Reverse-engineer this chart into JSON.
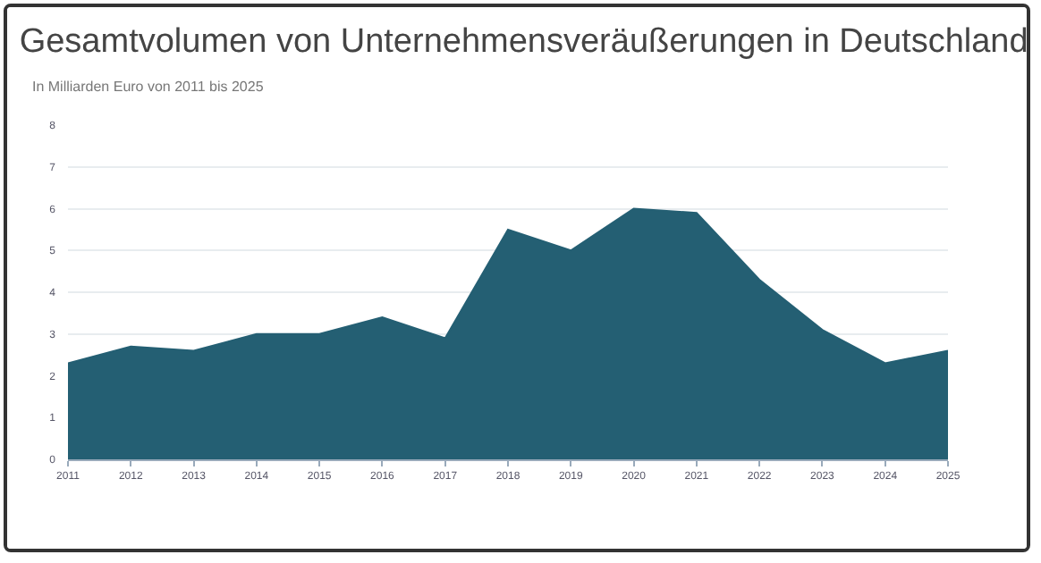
{
  "chart_data": {
    "type": "area",
    "title": "Gesamtvolumen von Unternehmensveräußerungen in Deutschland",
    "subtitle": "In Milliarden Euro von 2011 bis 2025",
    "x": [
      2011,
      2012,
      2013,
      2014,
      2015,
      2016,
      2017,
      2018,
      2019,
      2020,
      2021,
      2022,
      2023,
      2024,
      2025
    ],
    "series": [
      {
        "color": "#245f73",
        "values": [
          2.3,
          2.7,
          2.6,
          3.0,
          3.0,
          3.4,
          2.9,
          5.5,
          5.0,
          6.0,
          5.9,
          4.3,
          3.1,
          2.3,
          2.6
        ]
      }
    ],
    "xlim": [
      2011,
      2025
    ],
    "xticks": [
      2011,
      2012,
      2013,
      2014,
      2015,
      2016,
      2017,
      2018,
      2019,
      2020,
      2021,
      2022,
      2023,
      2024,
      2025
    ],
    "ylim": [
      0,
      8
    ],
    "yticks": [
      0,
      1,
      2,
      3,
      4,
      5,
      6,
      7,
      8
    ],
    "grid": "y"
  }
}
